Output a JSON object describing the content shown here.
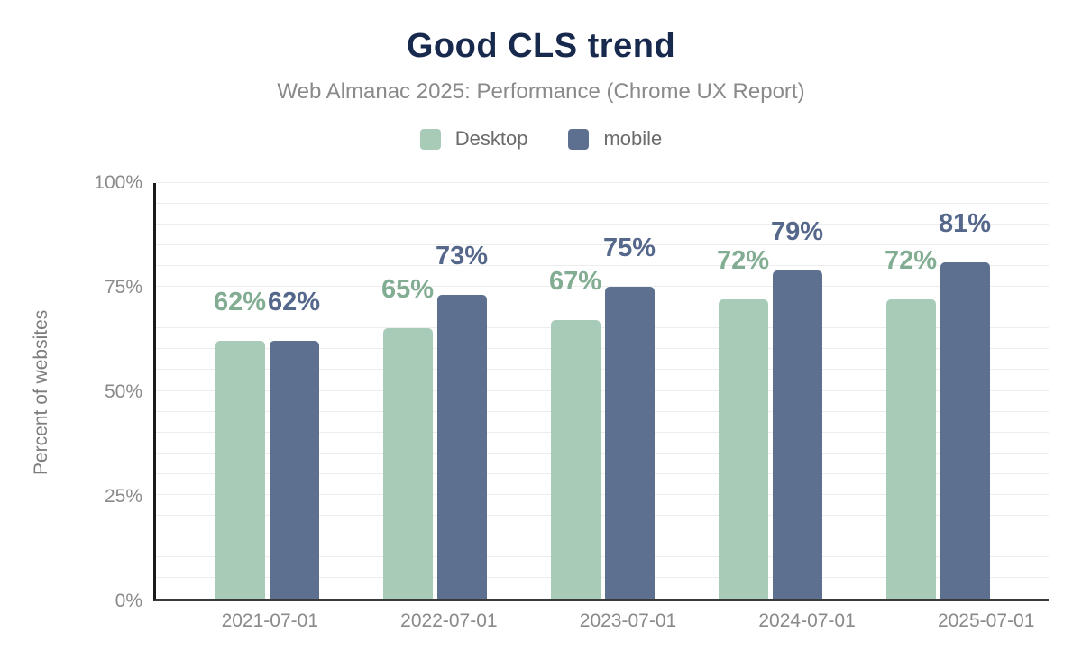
{
  "header": {
    "title": "Good CLS trend",
    "subtitle": "Web Almanac 2025: Performance (Chrome UX Report)"
  },
  "chart_data": {
    "type": "bar",
    "title": "Good CLS trend",
    "subtitle": "Web Almanac 2025: Performance (Chrome UX Report)",
    "categories": [
      "2021-07-01",
      "2022-07-01",
      "2023-07-01",
      "2024-07-01",
      "2025-07-01"
    ],
    "series": [
      {
        "name": "Desktop",
        "values": [
          62,
          65,
          67,
          72,
          72
        ],
        "color": "#a8cbb8",
        "label_color": "#82ad93"
      },
      {
        "name": "mobile",
        "values": [
          62,
          73,
          75,
          79,
          81
        ],
        "color": "#5e7090",
        "label_color": "#55688b"
      }
    ],
    "value_suffix": "%",
    "xlabel": "",
    "ylabel": "Percent of websites",
    "ylim": [
      0,
      100
    ],
    "yticks": [
      0,
      25,
      50,
      75,
      100
    ],
    "ytick_labels": [
      "0%",
      "25%",
      "50%",
      "75%",
      "100%"
    ],
    "grid": true,
    "grid_step": 5,
    "legend_position": "top"
  }
}
